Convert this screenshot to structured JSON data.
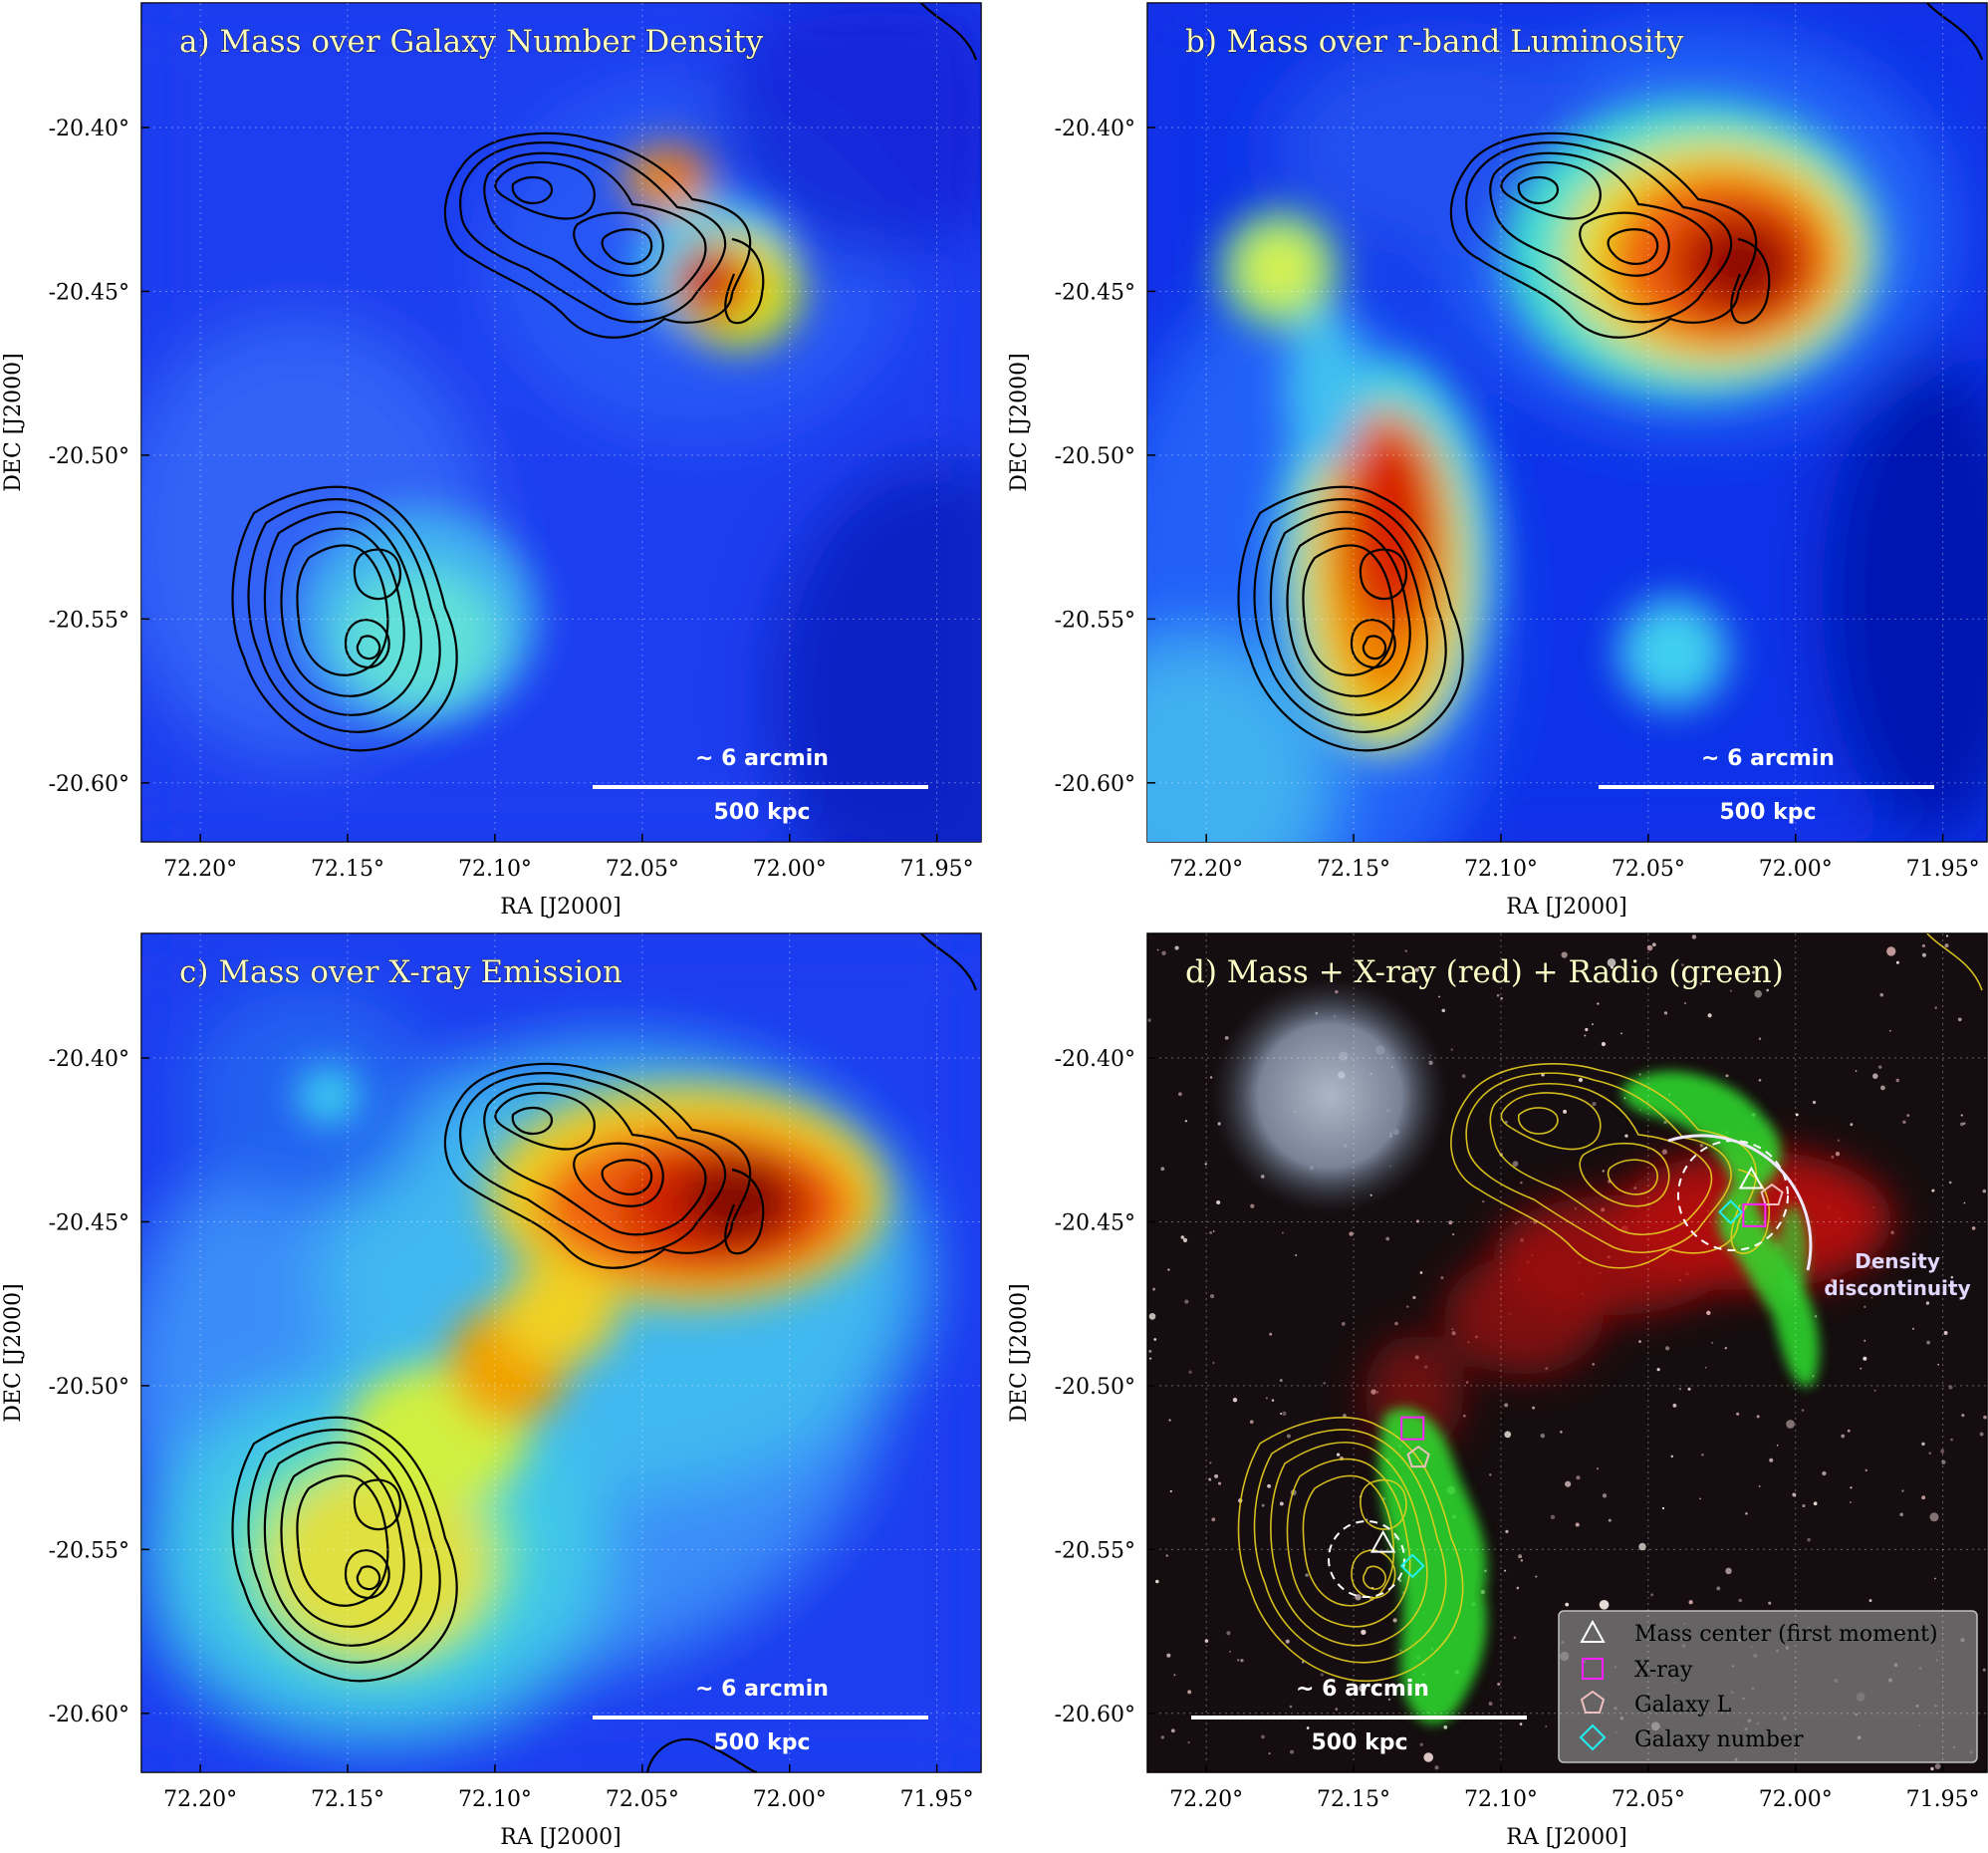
{
  "chart_data": [
    {
      "type": "heatmap",
      "panel": "a",
      "title": "a) Mass over Galaxy Number Density",
      "xlabel": "RA [J2000]",
      "ylabel": "DEC [J2000]",
      "xlim": [
        72.22,
        71.935
      ],
      "ylim": [
        -20.618,
        -20.362
      ],
      "xticks": [
        "72.20°",
        "72.15°",
        "72.10°",
        "72.05°",
        "72.00°",
        "71.95°"
      ],
      "yticks": [
        "-20.40°",
        "-20.45°",
        "-20.50°",
        "-20.55°",
        "-20.60°"
      ],
      "contour_color": "#000000",
      "scalebar_top": "~ 6 arcmin",
      "scalebar_bottom": "500 kpc",
      "background": "#1a3bf0",
      "blobs": [
        {
          "ra": 72.02,
          "dec": -20.443,
          "color": "#a01800",
          "intensity": 1.0
        },
        {
          "ra": 72.035,
          "dec": -20.418,
          "color": "#e85010",
          "intensity": 0.7
        },
        {
          "ra": 72.135,
          "dec": -20.545,
          "color": "#30d0e0",
          "intensity": 0.55
        }
      ]
    },
    {
      "type": "heatmap",
      "panel": "b",
      "title": "b) Mass over r-band Luminosity",
      "xlabel": "RA [J2000]",
      "ylabel": "DEC [J2000]",
      "xlim": [
        72.22,
        71.935
      ],
      "ylim": [
        -20.618,
        -20.362
      ],
      "xticks": [
        "72.20°",
        "72.15°",
        "72.10°",
        "72.05°",
        "72.00°",
        "71.95°"
      ],
      "yticks": [
        "-20.40°",
        "-20.45°",
        "-20.50°",
        "-20.55°",
        "-20.60°"
      ],
      "contour_color": "#000000",
      "scalebar_top": "~ 6 arcmin",
      "scalebar_bottom": "500 kpc",
      "background": "#1030e8",
      "blobs": [
        {
          "ra": 72.015,
          "dec": -20.44,
          "color": "#800c00",
          "intensity": 1.0
        },
        {
          "ra": 72.03,
          "dec": -20.425,
          "color": "#e03010",
          "intensity": 0.9
        },
        {
          "ra": 72.125,
          "dec": -20.53,
          "color": "#d02000",
          "intensity": 0.95
        },
        {
          "ra": 72.125,
          "dec": -20.56,
          "color": "#f08000",
          "intensity": 0.8
        },
        {
          "ra": 72.165,
          "dec": -20.44,
          "color": "#c8f040",
          "intensity": 0.6
        },
        {
          "ra": 72.04,
          "dec": -20.565,
          "color": "#40d0f0",
          "intensity": 0.5
        }
      ]
    },
    {
      "type": "heatmap",
      "panel": "c",
      "title": "c) Mass over X-ray Emission",
      "xlabel": "RA [J2000]",
      "ylabel": "DEC [J2000]",
      "xlim": [
        72.22,
        71.935
      ],
      "ylim": [
        -20.618,
        -20.362
      ],
      "xticks": [
        "72.20°",
        "72.15°",
        "72.10°",
        "72.05°",
        "72.00°",
        "71.95°"
      ],
      "yticks": [
        "-20.40°",
        "-20.45°",
        "-20.50°",
        "-20.55°",
        "-20.60°"
      ],
      "contour_color": "#000000",
      "scalebar_top": "~ 6 arcmin",
      "scalebar_bottom": "500 kpc",
      "background": "#1a3cf0",
      "blobs": [
        {
          "ra": 72.015,
          "dec": -20.443,
          "color": "#800800",
          "intensity": 1.0
        },
        {
          "ra": 72.04,
          "dec": -20.455,
          "color": "#f03010",
          "intensity": 0.9
        },
        {
          "ra": 72.09,
          "dec": -20.485,
          "color": "#f0a000",
          "intensity": 0.8
        },
        {
          "ra": 72.14,
          "dec": -20.545,
          "color": "#e8e040",
          "intensity": 0.75
        },
        {
          "ra": 72.12,
          "dec": -20.51,
          "color": "#f0a020",
          "intensity": 0.6
        }
      ]
    },
    {
      "type": "image",
      "panel": "d",
      "title": "d) Mass + X-ray (red) + Radio (green)",
      "xlabel": "RA [J2000]",
      "ylabel": "DEC [J2000]",
      "xlim": [
        72.22,
        71.935
      ],
      "ylim": [
        -20.618,
        -20.362
      ],
      "xticks": [
        "72.20°",
        "72.15°",
        "72.10°",
        "72.05°",
        "72.00°",
        "71.95°"
      ],
      "yticks": [
        "-20.40°",
        "-20.45°",
        "-20.50°",
        "-20.55°",
        "-20.60°"
      ],
      "contour_color": "#e8d020",
      "scalebar_top": "~ 6 arcmin",
      "scalebar_bottom": "500 kpc",
      "annotation": [
        "Density",
        "discontinuity"
      ],
      "legend": [
        {
          "marker": "triangle",
          "color": "#ffffff",
          "label": "Mass center (first moment)"
        },
        {
          "marker": "square",
          "color": "#ff20ff",
          "label": "X-ray"
        },
        {
          "marker": "pentagon",
          "color": "#f0c0c0",
          "label": "Galaxy L"
        },
        {
          "marker": "diamond",
          "color": "#20f0f0",
          "label": "Galaxy number"
        }
      ],
      "markers": [
        {
          "type": "triangle",
          "ra": 72.015,
          "dec": -20.437
        },
        {
          "type": "pentagon",
          "ra": 72.008,
          "dec": -20.442
        },
        {
          "type": "square",
          "ra": 72.014,
          "dec": -20.448
        },
        {
          "type": "diamond",
          "ra": 72.022,
          "dec": -20.447
        },
        {
          "type": "triangle",
          "ra": 72.14,
          "dec": -20.548
        },
        {
          "type": "square",
          "ra": 72.13,
          "dec": -20.513
        },
        {
          "type": "pentagon",
          "ra": 72.128,
          "dec": -20.522
        },
        {
          "type": "diamond",
          "ra": 72.13,
          "dec": -20.555
        }
      ]
    }
  ]
}
